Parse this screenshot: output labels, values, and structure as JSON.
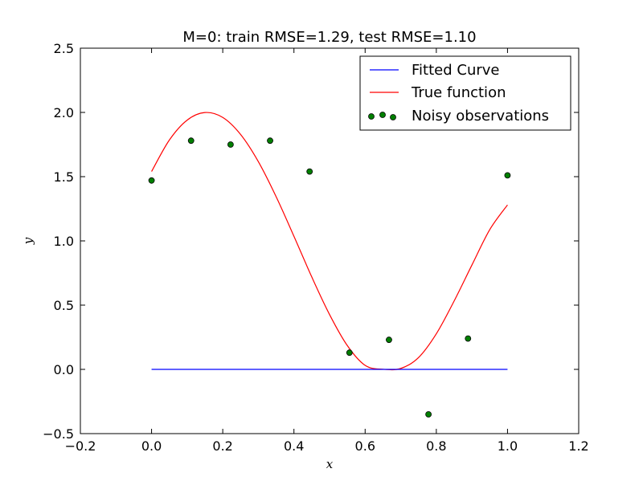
{
  "chart_data": {
    "type": "line",
    "title": "M=0: train RMSE=1.29, test RMSE=1.10",
    "xlabel": "x",
    "ylabel": "y",
    "xlim": [
      -0.2,
      1.2
    ],
    "ylim": [
      -0.5,
      2.5
    ],
    "xticks": [
      -0.2,
      0.0,
      0.2,
      0.4,
      0.6,
      0.8,
      1.0,
      1.2
    ],
    "yticks": [
      -0.5,
      0.0,
      0.5,
      1.0,
      1.5,
      2.0,
      2.5
    ],
    "xtick_labels": [
      "−0.2",
      "0.0",
      "0.2",
      "0.4",
      "0.6",
      "0.8",
      "1.0",
      "1.2"
    ],
    "ytick_labels": [
      "−0.5",
      "0.0",
      "0.5",
      "1.0",
      "1.5",
      "2.0",
      "2.5"
    ],
    "grid": false,
    "legend_position": "top-right",
    "series": [
      {
        "name": "Fitted Curve",
        "type": "line",
        "color": "#0000ff",
        "x": [
          0.0,
          1.0
        ],
        "y": [
          0.0,
          0.0
        ]
      },
      {
        "name": "True function",
        "type": "line",
        "color": "#ff0000",
        "x": [
          0.0,
          0.05,
          0.1,
          0.15,
          0.2,
          0.25,
          0.3,
          0.35,
          0.4,
          0.45,
          0.5,
          0.55,
          0.6,
          0.65,
          0.7,
          0.75,
          0.8,
          0.85,
          0.9,
          0.95,
          1.0
        ],
        "y": [
          1.54,
          1.785,
          1.94,
          1.999,
          1.961,
          1.829,
          1.617,
          1.344,
          1.036,
          0.72,
          0.427,
          0.185,
          0.031,
          0.001,
          0.007,
          0.092,
          0.277,
          0.532,
          0.812,
          1.087,
          1.28
        ]
      },
      {
        "name": "Noisy observations",
        "type": "scatter",
        "color": "#007f00",
        "x": [
          0.0,
          0.111,
          0.222,
          0.333,
          0.444,
          0.556,
          0.667,
          0.778,
          0.889,
          1.0
        ],
        "y": [
          1.47,
          1.78,
          1.75,
          1.78,
          1.54,
          0.13,
          0.23,
          -0.35,
          0.24,
          1.51
        ]
      }
    ]
  }
}
